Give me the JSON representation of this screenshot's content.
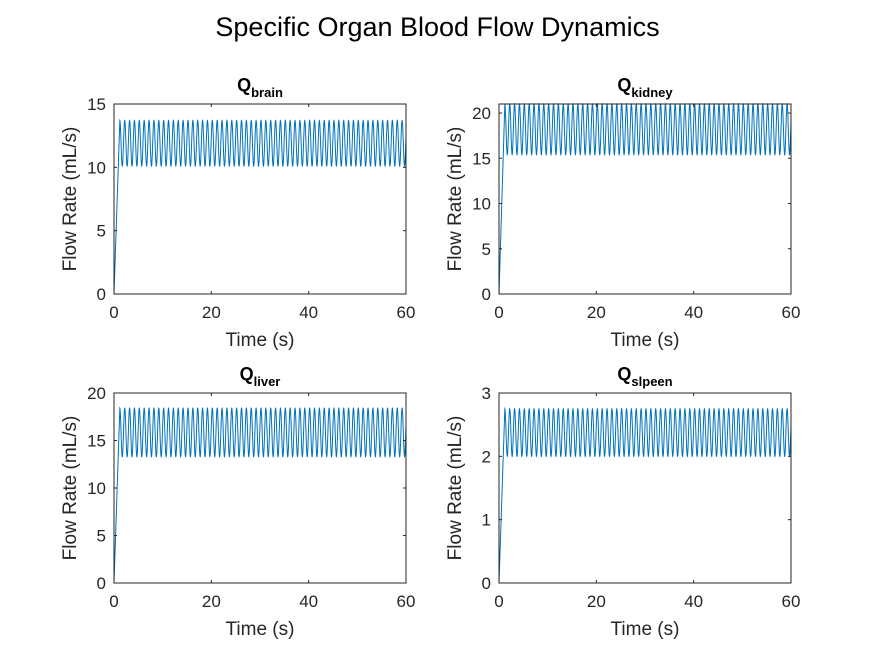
{
  "figure": {
    "title": "Specific Organ Blood Flow Dynamics"
  },
  "chart_data": [
    {
      "type": "line",
      "title_main": "Q",
      "title_sub": "brain",
      "xlabel": "Time (s)",
      "ylabel": "Flow Rate (mL/s)",
      "xlim": [
        0,
        60
      ],
      "ylim": [
        0,
        15
      ],
      "xticks": [
        0,
        20,
        40,
        60
      ],
      "yticks": [
        0,
        5,
        10,
        15
      ],
      "grid": false,
      "series": [
        {
          "color": "#0072BD",
          "min": 10.1,
          "max": 13.7,
          "start": 0,
          "rise_time": 1.2,
          "period": 1.0,
          "duration": 60
        }
      ]
    },
    {
      "type": "line",
      "title_main": "Q",
      "title_sub": "kidney",
      "xlabel": "Time (s)",
      "ylabel": "Flow Rate (mL/s)",
      "xlim": [
        0,
        60
      ],
      "ylim": [
        0,
        21
      ],
      "xticks": [
        0,
        20,
        40,
        60
      ],
      "yticks": [
        0,
        5,
        10,
        15,
        20
      ],
      "grid": false,
      "series": [
        {
          "color": "#0072BD",
          "min": 15.4,
          "max": 21.0,
          "start": 0,
          "rise_time": 1.2,
          "period": 1.0,
          "duration": 60
        }
      ]
    },
    {
      "type": "line",
      "title_main": "Q",
      "title_sub": "liver",
      "xlabel": "Time (s)",
      "ylabel": "Flow Rate (mL/s)",
      "xlim": [
        0,
        60
      ],
      "ylim": [
        0,
        20
      ],
      "xticks": [
        0,
        20,
        40,
        60
      ],
      "yticks": [
        0,
        5,
        10,
        15,
        20
      ],
      "grid": false,
      "series": [
        {
          "color": "#0072BD",
          "min": 13.3,
          "max": 18.4,
          "start": 0,
          "rise_time": 1.2,
          "period": 1.0,
          "duration": 60
        }
      ]
    },
    {
      "type": "line",
      "title_main": "Q",
      "title_sub": "slpeen",
      "xlabel": "Time (s)",
      "ylabel": "Flow Rate (mL/s)",
      "xlim": [
        0,
        60
      ],
      "ylim": [
        0,
        3
      ],
      "xticks": [
        0,
        20,
        40,
        60
      ],
      "yticks": [
        0,
        1,
        2,
        3
      ],
      "grid": false,
      "series": [
        {
          "color": "#0072BD",
          "min": 2.0,
          "max": 2.75,
          "start": 0,
          "rise_time": 1.2,
          "period": 1.0,
          "duration": 60
        }
      ]
    }
  ]
}
